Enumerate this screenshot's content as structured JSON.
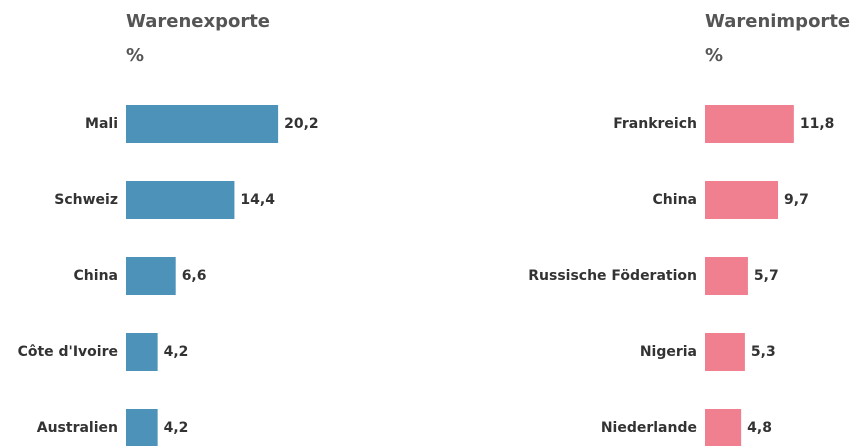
{
  "chart_data": [
    {
      "type": "bar",
      "orientation": "horizontal",
      "title": "Warenexporte",
      "subtitle": "%",
      "categories": [
        "Mali",
        "Schweiz",
        "China",
        "Côte d'Ivoire",
        "Australien"
      ],
      "values": [
        20.2,
        14.4,
        6.6,
        4.2,
        4.2
      ],
      "value_labels": [
        "20,2",
        "14,4",
        "6,6",
        "4,2",
        "4,2"
      ],
      "color": "#4d92b8"
    },
    {
      "type": "bar",
      "orientation": "horizontal",
      "title": "Warenimporte",
      "subtitle": "%",
      "categories": [
        "Frankreich",
        "China",
        "Russische Föderation",
        "Nigeria",
        "Niederlande"
      ],
      "values": [
        11.8,
        9.7,
        5.7,
        5.3,
        4.8
      ],
      "value_labels": [
        "11,8",
        "9,7",
        "5,7",
        "5,3",
        "4,8"
      ],
      "color": "#f08090"
    }
  ]
}
